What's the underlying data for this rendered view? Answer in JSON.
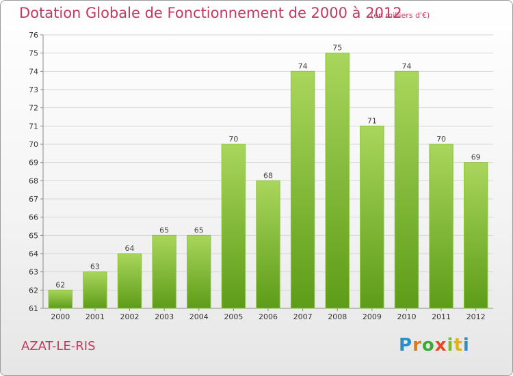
{
  "header": {
    "title": "Dotation Globale de Fonctionnement de 2000 à 2012",
    "unit": "(en milliers d'€)"
  },
  "footer": {
    "commune": "AZAT-LE-RIS",
    "logo_text": "Proxiti",
    "logo_colors": [
      "#2a8fc9",
      "#e07a18",
      "#3aaa35",
      "#e04b2a",
      "#7dbb2f",
      "#e0b020",
      "#2a8fc9"
    ]
  },
  "colors": {
    "bar_light": "#a9d65c",
    "bar_dark": "#5d9c18",
    "text_accent": "#c03a60"
  },
  "chart_data": {
    "type": "bar",
    "title": "Dotation Globale de Fonctionnement de 2000 à 2012",
    "subtitle": "(en milliers d'€)",
    "categories": [
      "2000",
      "2001",
      "2002",
      "2003",
      "2004",
      "2005",
      "2006",
      "2007",
      "2008",
      "2009",
      "2010",
      "2011",
      "2012"
    ],
    "values": [
      62,
      63,
      64,
      65,
      65,
      70,
      68,
      74,
      75,
      71,
      74,
      70,
      69
    ],
    "ylim": [
      61,
      76
    ],
    "yticks": [
      61,
      62,
      63,
      64,
      65,
      66,
      67,
      68,
      69,
      70,
      71,
      72,
      73,
      74,
      75,
      76
    ],
    "grid": true,
    "legend": "none"
  }
}
